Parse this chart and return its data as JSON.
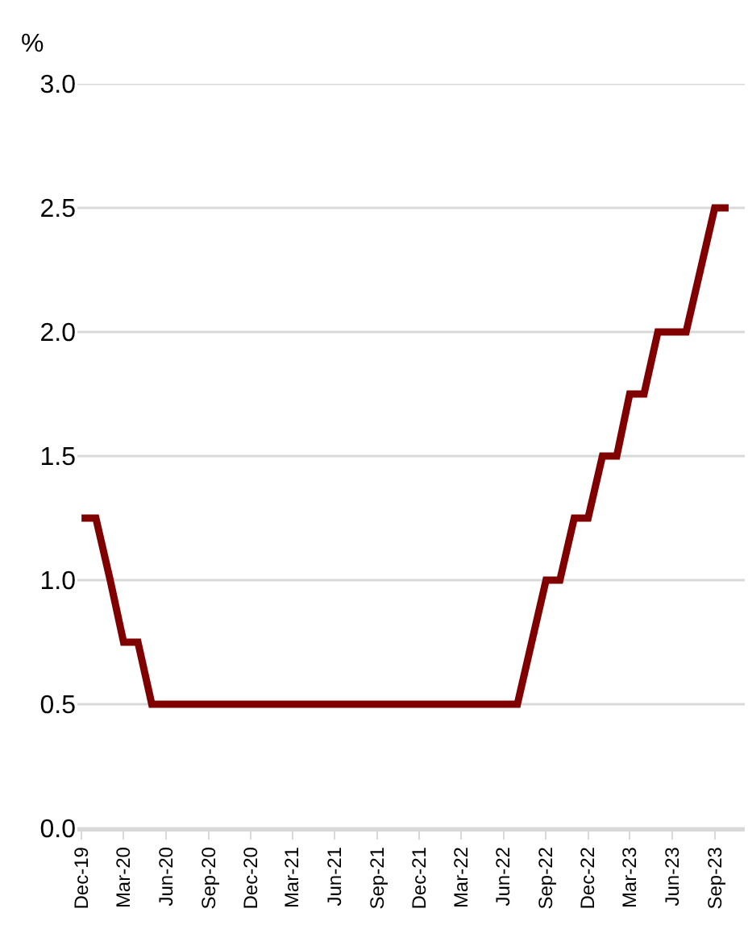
{
  "chart_data": {
    "type": "line",
    "ylabel": "%",
    "x": [
      "2019-12",
      "2020-01",
      "2020-02",
      "2020-03",
      "2020-04",
      "2020-05",
      "2020-06",
      "2020-07",
      "2020-08",
      "2020-09",
      "2020-10",
      "2020-11",
      "2020-12",
      "2021-01",
      "2021-02",
      "2021-03",
      "2021-04",
      "2021-05",
      "2021-06",
      "2021-07",
      "2021-08",
      "2021-09",
      "2021-10",
      "2021-11",
      "2021-12",
      "2022-01",
      "2022-02",
      "2022-03",
      "2022-04",
      "2022-05",
      "2022-06",
      "2022-07",
      "2022-08",
      "2022-09",
      "2022-10",
      "2022-11",
      "2022-12",
      "2023-01",
      "2023-02",
      "2023-03",
      "2023-04",
      "2023-05",
      "2023-06",
      "2023-07",
      "2023-08",
      "2023-09",
      "2023-10"
    ],
    "series": [
      {
        "color": "#800000",
        "values": [
          1.25,
          1.25,
          1.0,
          0.75,
          0.75,
          0.5,
          0.5,
          0.5,
          0.5,
          0.5,
          0.5,
          0.5,
          0.5,
          0.5,
          0.5,
          0.5,
          0.5,
          0.5,
          0.5,
          0.5,
          0.5,
          0.5,
          0.5,
          0.5,
          0.5,
          0.5,
          0.5,
          0.5,
          0.5,
          0.5,
          0.5,
          0.5,
          0.75,
          1.0,
          1.0,
          1.25,
          1.25,
          1.5,
          1.5,
          1.75,
          1.75,
          2.0,
          2.0,
          2.0,
          2.25,
          2.5,
          2.5
        ]
      }
    ],
    "xlim": [
      "2019-11-22",
      "2023-11-05"
    ],
    "xticks": [
      {
        "value": "2019-12",
        "label": "Dec-19"
      },
      {
        "value": "2020-03",
        "label": "Mar-20"
      },
      {
        "value": "2020-06",
        "label": "Jun-20"
      },
      {
        "value": "2020-09",
        "label": "Sep-20"
      },
      {
        "value": "2020-12",
        "label": "Dec-20"
      },
      {
        "value": "2021-03",
        "label": "Mar-21"
      },
      {
        "value": "2021-06",
        "label": "Jun-21"
      },
      {
        "value": "2021-09",
        "label": "Sep-21"
      },
      {
        "value": "2021-12",
        "label": "Dec-21"
      },
      {
        "value": "2022-03",
        "label": "Mar-22"
      },
      {
        "value": "2022-06",
        "label": "Jun-22"
      },
      {
        "value": "2022-09",
        "label": "Sep-22"
      },
      {
        "value": "2022-12",
        "label": "Dec-22"
      },
      {
        "value": "2023-03",
        "label": "Mar-23"
      },
      {
        "value": "2023-06",
        "label": "Jun-23"
      },
      {
        "value": "2023-09",
        "label": "Sep-23"
      }
    ],
    "ylim": [
      0,
      3
    ],
    "yticks": [
      {
        "value": 0,
        "label": "0.0"
      },
      {
        "value": 0.5,
        "label": "0.5"
      },
      {
        "value": 1,
        "label": "1.0"
      },
      {
        "value": 1.5,
        "label": "1.5"
      },
      {
        "value": 2,
        "label": "2.0"
      },
      {
        "value": 2.5,
        "label": "2.5"
      },
      {
        "value": 3,
        "label": "3.0"
      }
    ],
    "grid": "y",
    "marker": "none",
    "line_style": "solid"
  }
}
